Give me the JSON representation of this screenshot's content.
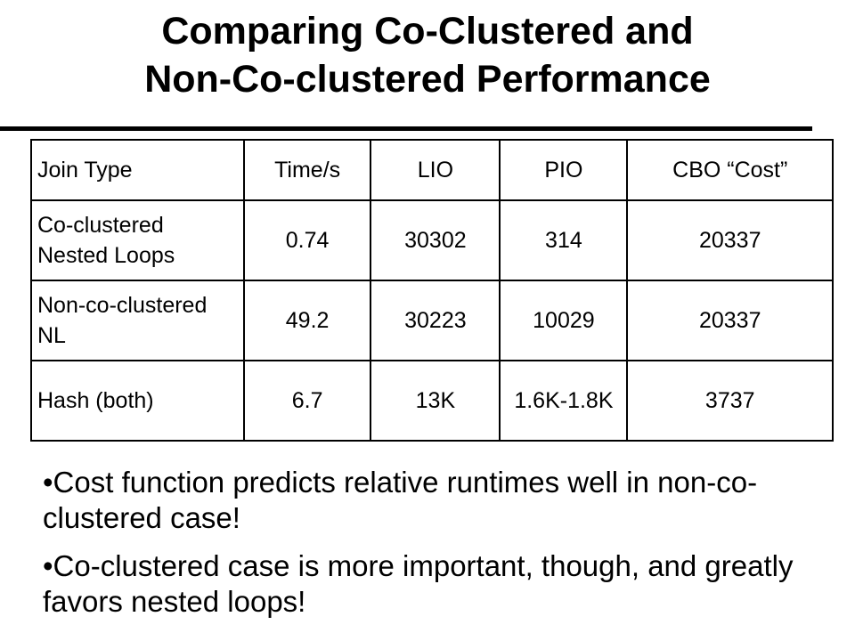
{
  "slide": {
    "title_line1": "Comparing Co-Clustered and",
    "title_line2": "Non-Co-clustered Performance"
  },
  "table": {
    "headers": [
      "Join Type",
      "Time/s",
      "LIO",
      "PIO",
      "CBO “Cost”"
    ],
    "rows": [
      [
        "Co-clustered Nested Loops",
        "0.74",
        "30302",
        "314",
        "20337"
      ],
      [
        "Non-co-clustered NL",
        "49.2",
        "30223",
        "10029",
        "20337"
      ],
      [
        "Hash (both)",
        "6.7",
        "13K",
        "1.6K-1.8K",
        "3737"
      ]
    ]
  },
  "bullets": [
    "•Cost function predicts relative runtimes well in non-co-clustered case!",
    "•Co-clustered case is more important, though, and greatly favors nested loops!"
  ]
}
